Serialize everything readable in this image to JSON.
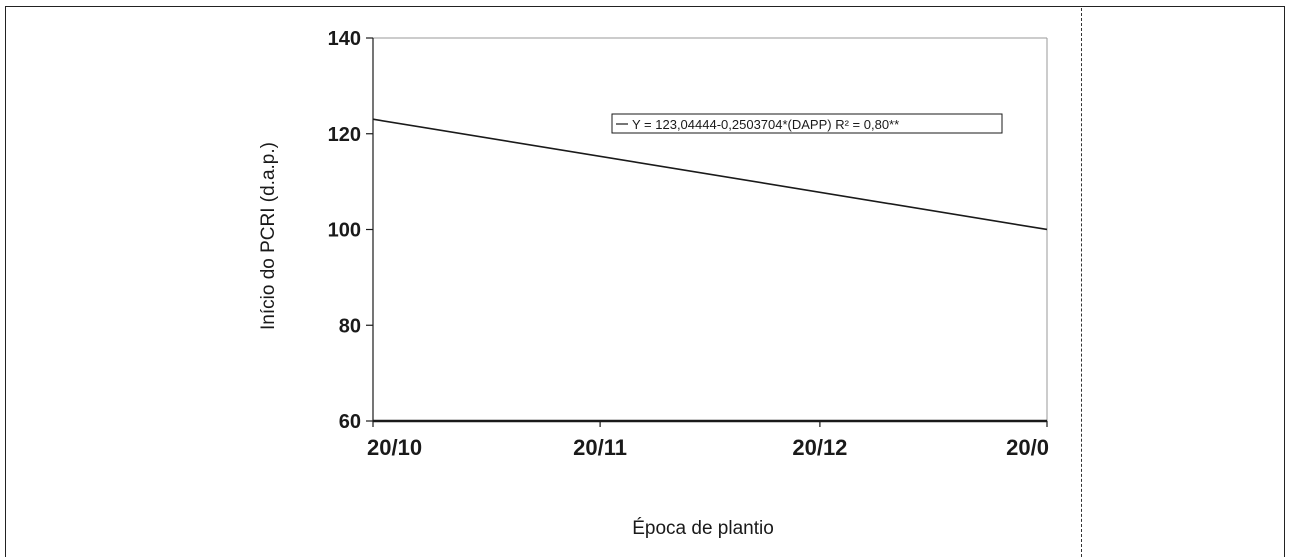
{
  "chart_data": {
    "type": "line",
    "xlabel": "Época de plantio",
    "ylabel": "Início do PCRI (d.a.p.)",
    "x_tick_labels": [
      "20/10",
      "20/11",
      "20/12",
      "20/0"
    ],
    "x_tick_values": [
      0,
      31,
      61,
      92
    ],
    "xlim": [
      0,
      92
    ],
    "ylim": [
      60,
      140
    ],
    "y_ticks": [
      60,
      80,
      100,
      120,
      140
    ],
    "grid": false,
    "legend_position": "top-right",
    "series": [
      {
        "name": "Y = 123,04444-0,2503704*(DAPP)  R² = 0,80**",
        "equation": {
          "intercept": 123.04444,
          "slope": -0.2503704
        },
        "x": [
          0,
          92
        ],
        "y": [
          123.04,
          100.01
        ]
      }
    ],
    "color": "#1a1a1a"
  }
}
